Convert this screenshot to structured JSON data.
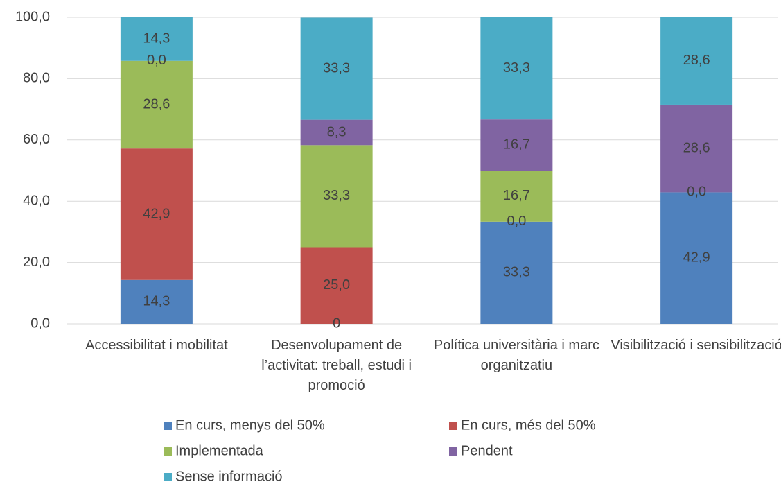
{
  "chart_data": {
    "type": "stacked_bar",
    "categories": [
      "Accessibilitat i mobilitat",
      "Desenvolupament de l’activitat: treball, estudi i promoció",
      "Política universitària i marc organitzatiu",
      "Visibilització i sensibilització"
    ],
    "series": [
      {
        "name": "En curs, menys del 50%",
        "color": "#4f81bd",
        "values": [
          14.3,
          0,
          33.3,
          42.9
        ],
        "value_labels": [
          "14,3",
          "0",
          "33,3",
          "42,9"
        ]
      },
      {
        "name": "En curs, més del 50%",
        "color": "#c0504d",
        "values": [
          42.9,
          25.0,
          0.0,
          0.0
        ],
        "value_labels": [
          "42,9",
          "25,0",
          "0,0",
          "0,0"
        ]
      },
      {
        "name": "Implementada",
        "color": "#9bbb59",
        "values": [
          28.6,
          33.3,
          16.7,
          null
        ],
        "value_labels": [
          "28,6",
          "33,3",
          "16,7",
          null
        ]
      },
      {
        "name": "Pendent",
        "color": "#8064a2",
        "values": [
          0.0,
          8.3,
          16.7,
          28.6
        ],
        "value_labels": [
          "0,0",
          "8,3",
          "16,7",
          "28,6"
        ]
      },
      {
        "name": "Sense informació",
        "color": "#4bacc6",
        "values": [
          14.3,
          33.3,
          33.3,
          28.6
        ],
        "value_labels": [
          "14,3",
          "33,3",
          "33,3",
          "28,6"
        ]
      }
    ],
    "ylim": [
      0,
      100
    ],
    "yticks": [
      {
        "value": 0,
        "label": "0,0"
      },
      {
        "value": 20,
        "label": "20,0"
      },
      {
        "value": 40,
        "label": "40,0"
      },
      {
        "value": 60,
        "label": "60,0"
      },
      {
        "value": 80,
        "label": "80,0"
      },
      {
        "value": 100,
        "label": "100,0"
      }
    ],
    "grid": true,
    "legend": "bottom"
  }
}
